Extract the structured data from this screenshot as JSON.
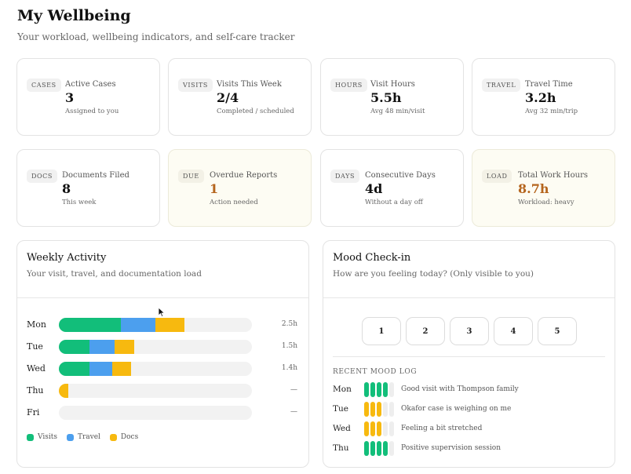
{
  "header": {
    "title": "My Wellbeing",
    "subtitle": "Your workload, wellbeing indicators, and self-care tracker"
  },
  "stats": [
    {
      "tag": "CASES",
      "label": "Active Cases",
      "value": "3",
      "sub": "Assigned to you"
    },
    {
      "tag": "VISITS",
      "label": "Visits This Week",
      "value": "2/4",
      "sub": "Completed / scheduled"
    },
    {
      "tag": "HOURS",
      "label": "Visit Hours",
      "value": "5.5h",
      "sub": "Avg 48 min/visit"
    },
    {
      "tag": "TRAVEL",
      "label": "Travel Time",
      "value": "3.2h",
      "sub": "Avg 32 min/trip"
    },
    {
      "tag": "DOCS",
      "label": "Documents Filed",
      "value": "8",
      "sub": "This week"
    },
    {
      "tag": "DUE",
      "label": "Overdue Reports",
      "value": "1",
      "sub": "Action needed"
    },
    {
      "tag": "DAYS",
      "label": "Consecutive Days",
      "value": "4d",
      "sub": "Without a day off"
    },
    {
      "tag": "LOAD",
      "label": "Total Work Hours",
      "value": "8.7h",
      "sub": "Workload: heavy"
    }
  ],
  "colors": {
    "visits": "#12be7a",
    "travel": "#4c9fee",
    "docs": "#f7b90f",
    "warning_value": "#b5651d",
    "warning_card_bg": "#fdfcf3"
  },
  "weekly_activity": {
    "title": "Weekly Activity",
    "subtitle": "Your visit, travel, and documentation load",
    "legend": {
      "visits": "Visits",
      "travel": "Travel",
      "docs": "Docs"
    },
    "days": [
      {
        "day": "Mon",
        "visits": 0.32,
        "travel": 0.18,
        "docs": 0.15,
        "total": "2.5h"
      },
      {
        "day": "Tue",
        "visits": 0.16,
        "travel": 0.13,
        "docs": 0.1,
        "total": "1.5h"
      },
      {
        "day": "Wed",
        "visits": 0.16,
        "travel": 0.115,
        "docs": 0.1,
        "total": "1.4h"
      },
      {
        "day": "Thu",
        "visits": 0,
        "travel": 0,
        "docs": 0.05,
        "total": "—"
      },
      {
        "day": "Fri",
        "visits": 0,
        "travel": 0,
        "docs": 0,
        "total": "—"
      }
    ]
  },
  "mood": {
    "title": "Mood Check-in",
    "subtitle": "How are you feeling today? (Only visible to you)",
    "options": [
      "1",
      "2",
      "3",
      "4",
      "5"
    ],
    "log_heading": "RECENT MOOD LOG",
    "log": [
      {
        "day": "Mon",
        "level": 4,
        "tone": "green",
        "note": "Good visit with Thompson family"
      },
      {
        "day": "Tue",
        "level": 3,
        "tone": "yellow",
        "note": "Okafor case is weighing on me"
      },
      {
        "day": "Wed",
        "level": 3,
        "tone": "yellow",
        "note": "Feeling a bit stretched"
      },
      {
        "day": "Thu",
        "level": 4,
        "tone": "green",
        "note": "Positive supervision session"
      }
    ]
  }
}
